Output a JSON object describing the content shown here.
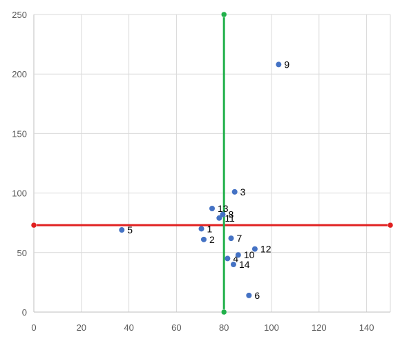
{
  "chart_data": {
    "type": "scatter",
    "title": "",
    "xlabel": "",
    "ylabel": "",
    "xlim": [
      0,
      150
    ],
    "ylim": [
      0,
      250
    ],
    "x_ticks": [
      0,
      20,
      40,
      60,
      80,
      100,
      120,
      140
    ],
    "y_ticks": [
      0,
      50,
      100,
      150,
      200,
      250
    ],
    "grid": true,
    "legend": "none",
    "point_color": "#4472C4",
    "points": [
      {
        "label": "1",
        "x": 70.5,
        "y": 70
      },
      {
        "label": "2",
        "x": 71.5,
        "y": 61
      },
      {
        "label": "3",
        "x": 84.5,
        "y": 101
      },
      {
        "label": "4",
        "x": 81.5,
        "y": 45
      },
      {
        "label": "5",
        "x": 37,
        "y": 69
      },
      {
        "label": "6",
        "x": 90.5,
        "y": 14
      },
      {
        "label": "7",
        "x": 83,
        "y": 62
      },
      {
        "label": "8",
        "x": 79.5,
        "y": 82
      },
      {
        "label": "9",
        "x": 103,
        "y": 208
      },
      {
        "label": "10",
        "x": 86,
        "y": 48
      },
      {
        "label": "11",
        "x": 78,
        "y": 79
      },
      {
        "label": "12",
        "x": 93,
        "y": 53
      },
      {
        "label": "13",
        "x": 75,
        "y": 87
      },
      {
        "label": "14",
        "x": 84,
        "y": 40
      }
    ],
    "reference_lines": [
      {
        "orientation": "horizontal",
        "value": 73,
        "color": "#E02020"
      },
      {
        "orientation": "vertical",
        "value": 80,
        "color": "#22B04B"
      }
    ]
  }
}
